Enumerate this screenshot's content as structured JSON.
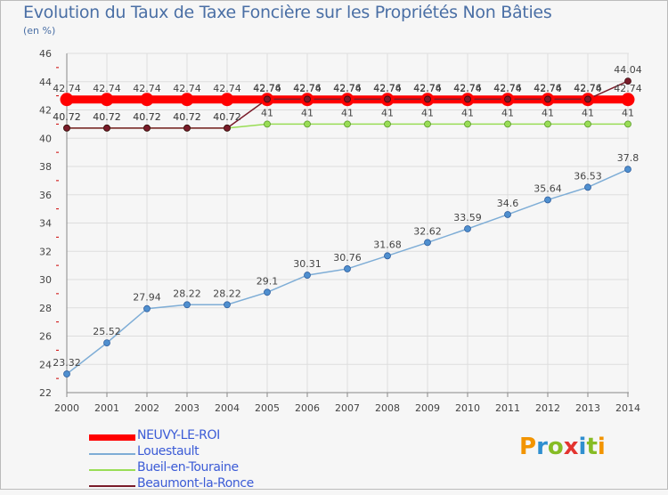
{
  "header": {
    "title": "Evolution du Taux de Taxe Foncière sur les Propriétés Non Bâties",
    "unit": "(en %)"
  },
  "chart_data": {
    "type": "line",
    "title": "Evolution du Taux de Taxe Foncière sur les Propriétés Non Bâties",
    "ylabel": "(en %)",
    "xlabel": "",
    "ylim": [
      22,
      46
    ],
    "yticks": [
      "22",
      "24",
      "26",
      "28",
      "30",
      "32",
      "34",
      "36",
      "38",
      "40",
      "42",
      "44",
      "46"
    ],
    "x": [
      "2000",
      "2001",
      "2002",
      "2003",
      "2004",
      "2005",
      "2006",
      "2007",
      "2008",
      "2009",
      "2010",
      "2011",
      "2012",
      "2013",
      "2014"
    ],
    "series": [
      {
        "name": "NEUVY-LE-ROI",
        "color": "#ff0000",
        "values": [
          42.74,
          42.74,
          42.74,
          42.74,
          42.74,
          42.74,
          42.74,
          42.74,
          42.74,
          42.74,
          42.74,
          42.74,
          42.74,
          42.74,
          42.74
        ],
        "labels": [
          "42.74",
          "42.74",
          "42.74",
          "42.74",
          "42.74",
          "42.74",
          "42.74",
          "42.74",
          "42.74",
          "42.74",
          "42.74",
          "42.74",
          "42.74",
          "42.74",
          "42.74"
        ]
      },
      {
        "name": "Louestault",
        "color": "#7eadd6",
        "values": [
          23.32,
          25.52,
          27.94,
          28.22,
          28.22,
          29.1,
          30.31,
          30.76,
          31.68,
          32.62,
          33.59,
          34.6,
          35.64,
          36.53,
          37.8
        ],
        "labels": [
          "23.32",
          "25.52",
          "27.94",
          "28.22",
          "28.22",
          "29.1",
          "30.31",
          "30.76",
          "31.68",
          "32.62",
          "33.59",
          "34.6",
          "35.64",
          "36.53",
          "37.8"
        ]
      },
      {
        "name": "Bueil-en-Touraine",
        "color": "#99dd55",
        "values": [
          40.72,
          40.72,
          40.72,
          40.72,
          40.72,
          41,
          41,
          41,
          41,
          41,
          41,
          41,
          41,
          41,
          41
        ],
        "labels": [
          "40.72",
          "40.72",
          "40.72",
          "40.72",
          "40.72",
          "41",
          "41",
          "41",
          "41",
          "41",
          "41",
          "41",
          "41",
          "41",
          "41"
        ]
      },
      {
        "name": "Beaumont-la-Ronce",
        "color": "#7a1c2a",
        "values": [
          40.72,
          40.72,
          40.72,
          40.72,
          40.72,
          42.76,
          42.76,
          42.76,
          42.76,
          42.76,
          42.76,
          42.76,
          42.76,
          42.76,
          44.04
        ],
        "labels": [
          "40.72",
          "40.72",
          "40.72",
          "40.72",
          "40.72",
          "42.76",
          "42.76",
          "42.76",
          "42.76",
          "42.76",
          "42.76",
          "42.76",
          "42.76",
          "42.76",
          "44.04"
        ]
      }
    ]
  },
  "legend": {
    "items": [
      {
        "name": "NEUVY-LE-ROI",
        "color": "#ff0000"
      },
      {
        "name": "Louestault",
        "color": "#7eadd6"
      },
      {
        "name": "Bueil-en-Touraine",
        "color": "#99dd55"
      },
      {
        "name": "Beaumont-la-Ronce",
        "color": "#7a1c2a"
      }
    ]
  },
  "logo": {
    "letters": [
      "P",
      "r",
      "o",
      "x",
      "i",
      "t",
      "i"
    ],
    "colors": [
      "#f29400",
      "#2f8fd0",
      "#86bc25",
      "#e3342f",
      "#2f8fd0",
      "#86bc25",
      "#f29400"
    ]
  }
}
